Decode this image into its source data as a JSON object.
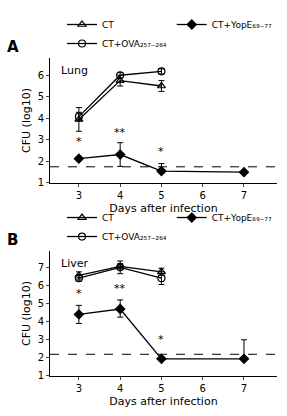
{
  "chart_data": [
    {
      "type": "line",
      "panel_label": "A",
      "title": "Lung",
      "x_label": "Days after infection",
      "y_label": "CFU (log10)",
      "xlim": [
        2.3,
        7.8
      ],
      "xticks": [
        3,
        4,
        5,
        6,
        7
      ],
      "ylim": [
        1.0,
        6.8
      ],
      "yticks": [
        1,
        2,
        3,
        4,
        5,
        6
      ],
      "grid": false,
      "legend": "top",
      "reference_line": {
        "y": 1.75,
        "line_style": "dashed"
      },
      "series": [
        {
          "name": "CT",
          "x": [
            3,
            4,
            5
          ],
          "values": [
            3.95,
            5.75,
            5.5
          ],
          "error_low": [
            0.55,
            0.25,
            0.25
          ],
          "error_high": [
            0.55,
            0.25,
            0.25
          ],
          "color": "black",
          "marker": "triangle-up-open"
        },
        {
          "name": "CT+YopE₆₉₋₇₇",
          "x": [
            3,
            4,
            5,
            7
          ],
          "values": [
            2.13,
            2.32,
            1.55,
            1.5
          ],
          "error_low": [
            0.08,
            0.55,
            0.08,
            0.0
          ],
          "error_high": [
            0.08,
            0.55,
            0.35,
            0.0
          ],
          "color": "black",
          "marker": "diamond"
        },
        {
          "name": "CT+OVA₂₅₇₋₂₆₄",
          "x": [
            3,
            4,
            5
          ],
          "values": [
            4.08,
            6.0,
            6.18
          ],
          "error_low": [
            0.2,
            0.12,
            0.12
          ],
          "error_high": [
            0.2,
            0.12,
            0.12
          ],
          "color": "black",
          "marker": "circle-open"
        }
      ],
      "annotations": [
        {
          "x": 3,
          "y": 2.55,
          "text": "*"
        },
        {
          "x": 4,
          "y": 2.95,
          "text": "**"
        },
        {
          "x": 5,
          "y": 2.05,
          "text": "*"
        }
      ]
    },
    {
      "type": "line",
      "panel_label": "B",
      "title": "Liver",
      "x_label": "Days after infection",
      "y_label": "CFU (log10)",
      "xlim": [
        2.3,
        7.8
      ],
      "xticks": [
        3,
        4,
        5,
        6,
        7
      ],
      "ylim": [
        1.0,
        7.9
      ],
      "yticks": [
        1,
        2,
        3,
        4,
        5,
        6,
        7
      ],
      "grid": false,
      "legend": "top",
      "reference_line": {
        "y": 2.2,
        "line_style": "dashed"
      },
      "series": [
        {
          "name": "CT",
          "x": [
            3,
            4,
            5
          ],
          "values": [
            6.55,
            7.05,
            6.75
          ],
          "error_low": [
            0.2,
            0.15,
            0.2
          ],
          "error_high": [
            0.2,
            0.15,
            0.2
          ],
          "color": "black",
          "marker": "triangle-up-open"
        },
        {
          "name": "CT+YopE₆₉₋₇₇",
          "x": [
            3,
            4,
            5,
            7
          ],
          "values": [
            4.4,
            4.7,
            1.95,
            1.95
          ],
          "error_low": [
            0.5,
            0.45,
            0.05,
            0.0
          ],
          "error_high": [
            0.5,
            0.5,
            0.05,
            1.05
          ],
          "color": "black",
          "marker": "diamond"
        },
        {
          "name": "CT+OVA₂₅₇₋₂₆₄",
          "x": [
            3,
            4,
            5
          ],
          "values": [
            6.4,
            7.0,
            6.4
          ],
          "error_low": [
            0.15,
            0.35,
            0.35
          ],
          "error_high": [
            0.15,
            0.35,
            0.35
          ],
          "color": "black",
          "marker": "circle-open"
        }
      ],
      "annotations": [
        {
          "x": 3,
          "y": 5.1,
          "text": "*"
        },
        {
          "x": 4,
          "y": 5.35,
          "text": "**"
        },
        {
          "x": 5,
          "y": 2.55,
          "text": "*"
        }
      ]
    }
  ]
}
